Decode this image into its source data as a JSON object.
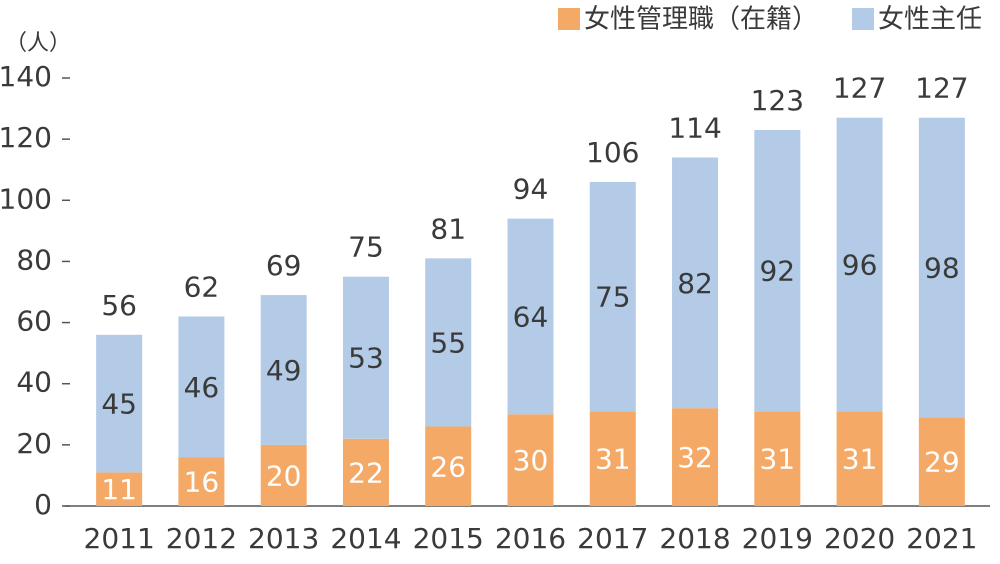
{
  "chart_data": {
    "type": "stacked_bar",
    "y_label": "（人）",
    "categories": [
      "2011",
      "2012",
      "2013",
      "2014",
      "2015",
      "2016",
      "2017",
      "2018",
      "2019",
      "2020",
      "2021"
    ],
    "series": [
      {
        "name": "女性管理職（在籍）",
        "color": "#f4a966",
        "label_color": "#ffffff",
        "values": [
          11,
          16,
          20,
          22,
          26,
          30,
          31,
          32,
          31,
          31,
          29
        ]
      },
      {
        "name": "女性主任",
        "color": "#b3cbe6",
        "label_color": "#3a3a3a",
        "values": [
          45,
          46,
          49,
          53,
          55,
          64,
          75,
          82,
          92,
          96,
          98
        ]
      }
    ],
    "totals": [
      56,
      62,
      69,
      75,
      81,
      94,
      106,
      114,
      123,
      127,
      127
    ],
    "ylim": [
      0,
      140
    ],
    "yticks": [
      0,
      20,
      40,
      60,
      80,
      100,
      120,
      140
    ],
    "grid": false,
    "legend": "top-right"
  }
}
